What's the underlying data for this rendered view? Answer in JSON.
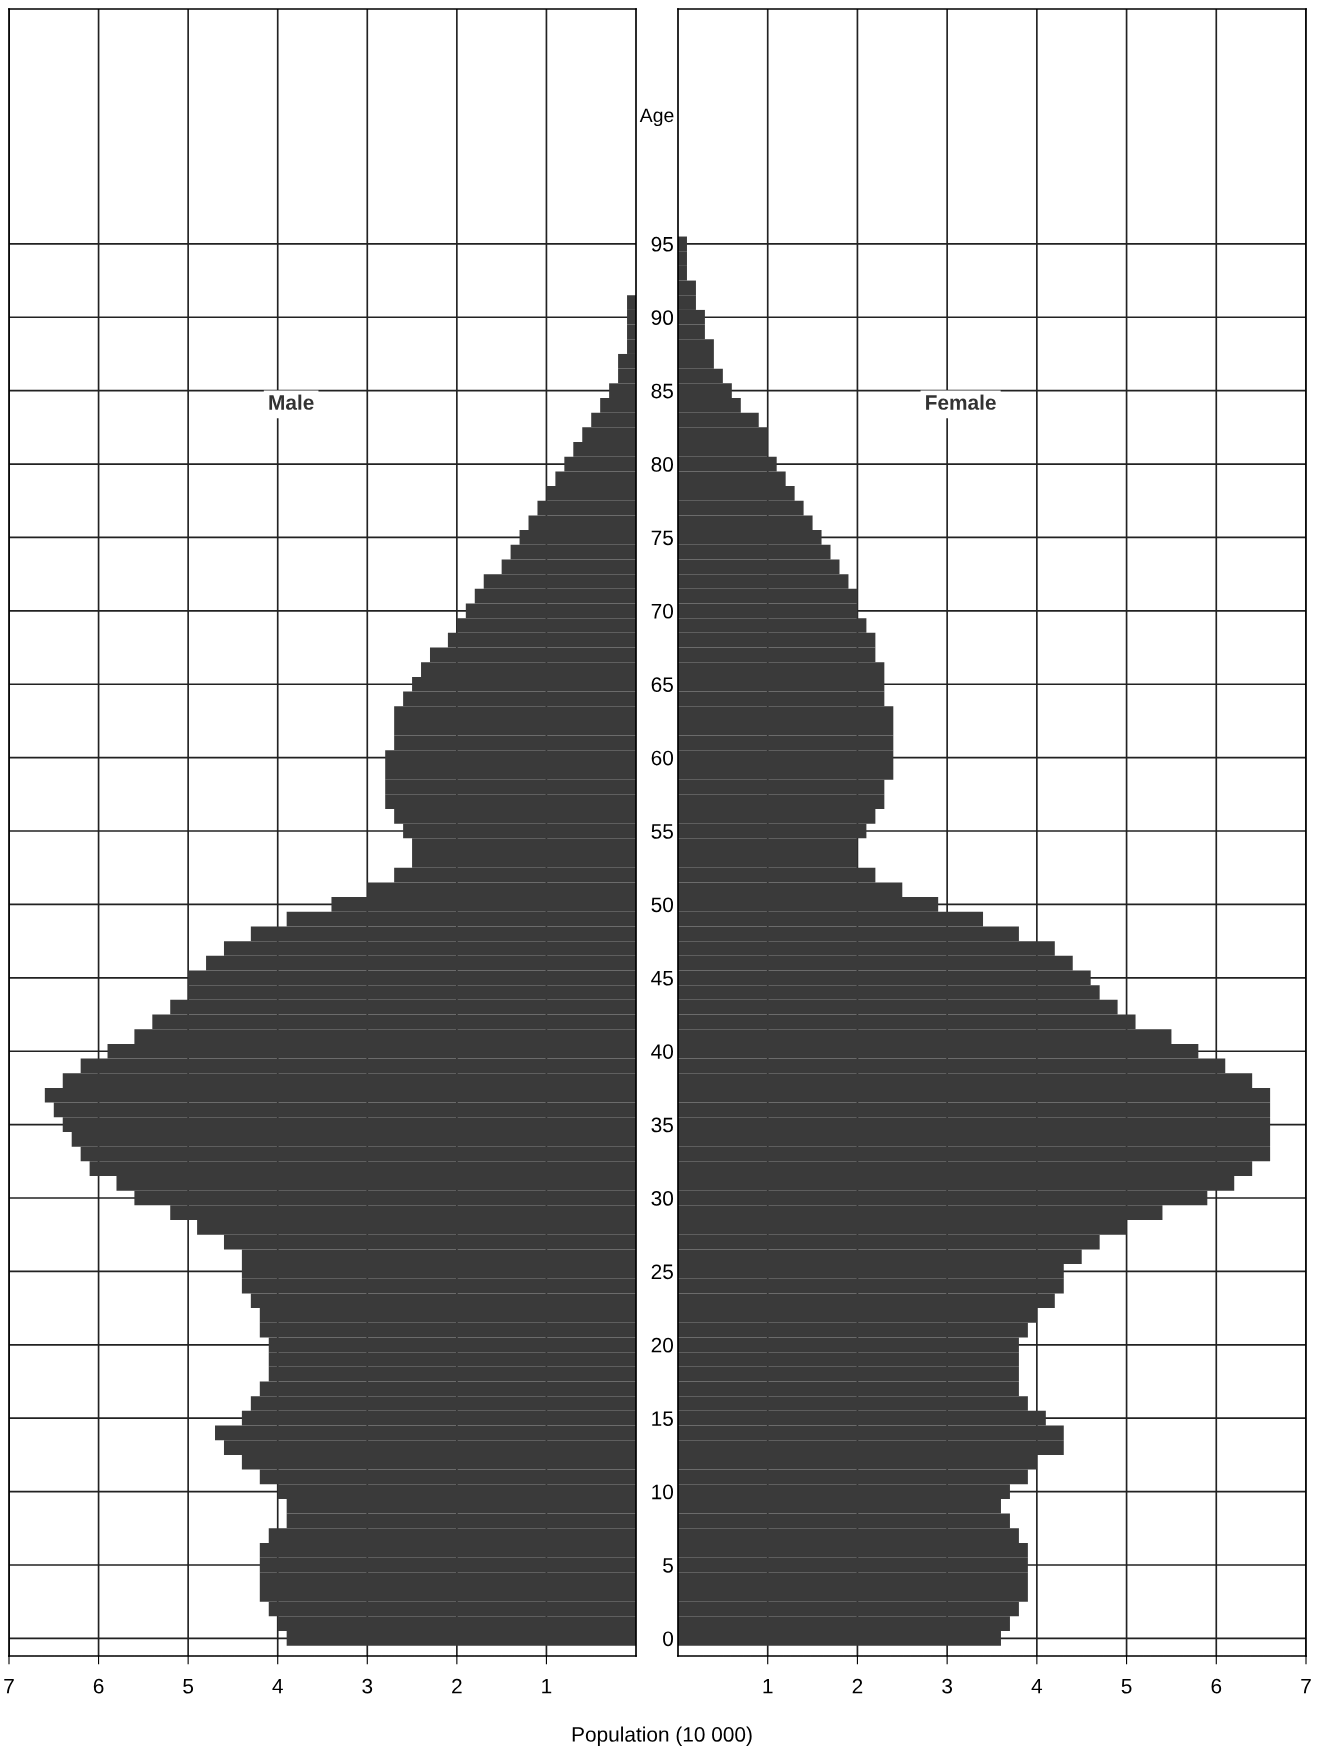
{
  "chart_data": [
    {
      "type": "bar",
      "orientation": "horizontal",
      "categories": [
        "95",
        null,
        null,
        null,
        null,
        "90",
        null,
        null,
        null,
        null,
        "85",
        null,
        null,
        null,
        null,
        "80",
        null,
        null,
        null,
        null,
        "75",
        null,
        null,
        null,
        null,
        "70",
        null,
        null,
        null,
        null,
        "65",
        null,
        null,
        null,
        null,
        "60",
        null,
        null,
        null,
        null,
        "55",
        null,
        null,
        null,
        null,
        "50",
        null,
        null,
        null,
        null,
        "45",
        null,
        null,
        null,
        null,
        "40",
        null,
        null,
        null,
        null,
        "35",
        null,
        null,
        null,
        null,
        "30",
        null,
        null,
        null,
        null,
        "25",
        null,
        null,
        null,
        null,
        "20",
        null,
        null,
        null,
        null,
        "15",
        null,
        null,
        null,
        null,
        "10",
        null,
        null,
        null,
        null,
        "5",
        null,
        null,
        null,
        null,
        "0"
      ],
      "series": [
        {
          "name": "Male",
          "color": "#3a3a3a",
          "values": [
            null,
            null,
            null,
            null,
            0.1,
            0.1,
            0.1,
            0.1,
            0.2,
            0.2,
            0.3,
            0.4,
            0.5,
            0.6,
            0.7,
            0.8,
            0.9,
            1.0,
            1.1,
            1.2,
            1.3,
            1.4,
            1.5,
            1.7,
            1.8,
            1.9,
            2.0,
            2.1,
            2.3,
            2.4,
            2.5,
            2.6,
            2.7,
            2.7,
            2.7,
            2.8,
            2.8,
            2.8,
            2.8,
            2.7,
            2.6,
            2.5,
            2.5,
            2.7,
            3.0,
            3.4,
            3.9,
            4.3,
            4.6,
            4.8,
            5.0,
            5.0,
            5.2,
            5.4,
            5.6,
            5.9,
            6.2,
            6.4,
            6.6,
            6.5,
            6.4,
            6.3,
            6.2,
            6.1,
            5.8,
            5.6,
            5.2,
            4.9,
            4.6,
            4.4,
            4.4,
            4.4,
            4.3,
            4.2,
            4.2,
            4.1,
            4.1,
            4.1,
            4.2,
            4.3,
            4.4,
            4.7,
            4.6,
            4.4,
            4.2,
            4.0,
            3.9,
            3.9,
            4.1,
            4.2,
            4.2,
            4.2,
            4.2,
            4.1,
            4.0,
            3.9
          ]
        }
      ],
      "xlim": [
        7,
        0
      ],
      "xticks": [
        7,
        6,
        5,
        4,
        3,
        2,
        1
      ],
      "grid": true,
      "tick_labels": "x",
      "xlabel": "Population (10 000)"
    },
    {
      "type": "bar",
      "orientation": "horizontal",
      "categories": [
        "95",
        null,
        null,
        null,
        null,
        "90",
        null,
        null,
        null,
        null,
        "85",
        null,
        null,
        null,
        null,
        "80",
        null,
        null,
        null,
        null,
        "75",
        null,
        null,
        null,
        null,
        "70",
        null,
        null,
        null,
        null,
        "65",
        null,
        null,
        null,
        null,
        "60",
        null,
        null,
        null,
        null,
        "55",
        null,
        null,
        null,
        null,
        "50",
        null,
        null,
        null,
        null,
        "45",
        null,
        null,
        null,
        null,
        "40",
        null,
        null,
        null,
        null,
        "35",
        null,
        null,
        null,
        null,
        "30",
        null,
        null,
        null,
        null,
        "25",
        null,
        null,
        null,
        null,
        "20",
        null,
        null,
        null,
        null,
        "15",
        null,
        null,
        null,
        null,
        "10",
        null,
        null,
        null,
        null,
        "5",
        null,
        null,
        null,
        null,
        "0"
      ],
      "series": [
        {
          "name": "Female",
          "color": "#3a3a3a",
          "values": [
            0.1,
            0.1,
            0.1,
            0.2,
            0.2,
            0.3,
            0.3,
            0.4,
            0.4,
            0.5,
            0.6,
            0.7,
            0.9,
            1.0,
            1.0,
            1.1,
            1.2,
            1.3,
            1.4,
            1.5,
            1.6,
            1.7,
            1.8,
            1.9,
            2.0,
            2.0,
            2.1,
            2.2,
            2.2,
            2.3,
            2.3,
            2.3,
            2.4,
            2.4,
            2.4,
            2.4,
            2.4,
            2.3,
            2.3,
            2.2,
            2.1,
            2.0,
            2.0,
            2.2,
            2.5,
            2.9,
            3.4,
            3.8,
            4.2,
            4.4,
            4.6,
            4.7,
            4.9,
            5.1,
            5.5,
            5.8,
            6.1,
            6.4,
            6.6,
            6.6,
            6.6,
            6.6,
            6.6,
            6.4,
            6.2,
            5.9,
            5.4,
            5.0,
            4.7,
            4.5,
            4.3,
            4.3,
            4.2,
            4.0,
            3.9,
            3.8,
            3.8,
            3.8,
            3.8,
            3.9,
            4.1,
            4.3,
            4.3,
            4.0,
            3.9,
            3.7,
            3.6,
            3.7,
            3.8,
            3.9,
            3.9,
            3.9,
            3.9,
            3.8,
            3.7,
            3.6
          ]
        }
      ],
      "xlim": [
        0,
        7
      ],
      "xticks": [
        1,
        2,
        3,
        4,
        5,
        6,
        7
      ],
      "grid": true,
      "ylabel": "Age"
    }
  ]
}
